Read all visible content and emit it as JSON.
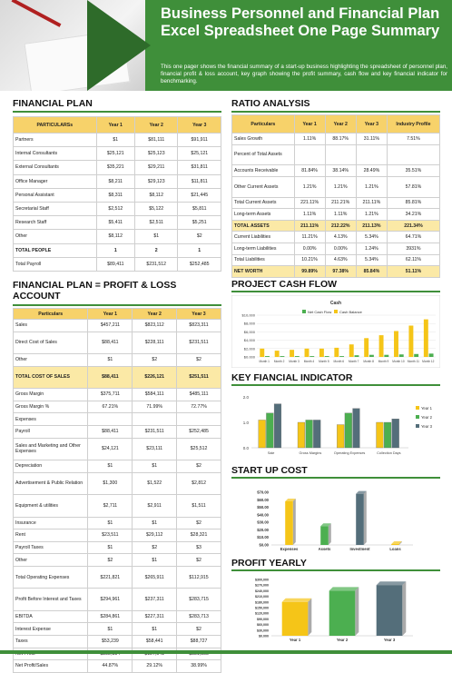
{
  "header": {
    "title": "Business Personnel and Financial Plan Excel Spreadsheet One Page Summary",
    "description": "This one pager shows the financial summary of a start-up business highlighting the spreadsheet of personnel plan, financial profit & loss account, key graph showing the profit summary, cash flow and key financial indicator for benchmarking."
  },
  "financial_plan": {
    "title": "FINANCIAL PLAN",
    "headers": [
      "PARTICULARSs",
      "Year 1",
      "Year 2",
      "Year 3"
    ],
    "rows": [
      [
        "Partners",
        "$1",
        "$81,111",
        "$91,911"
      ],
      [
        "Internal Consultants",
        "$25,121",
        "$25,123",
        "$25,121"
      ],
      [
        "External Consultants",
        "$35,221",
        "$29,211",
        "$31,811"
      ],
      [
        "Office Manager",
        "$8,211",
        "$29,123",
        "$11,811"
      ],
      [
        "Personal Assistant",
        "$8,311",
        "$8,112",
        "$21,445"
      ],
      [
        "Secretarial Staff",
        "$2,512",
        "$5,122",
        "$5,811"
      ],
      [
        "Research Staff",
        "$5,411",
        "$2,511",
        "$5,251"
      ],
      [
        "Other",
        "$8,112",
        "$1",
        "$2"
      ],
      [
        "TOTAL PEOPLE",
        "1",
        "2",
        "1"
      ],
      [
        "Total Payroll",
        "$89,411",
        "$231,512",
        "$252,485"
      ]
    ]
  },
  "ratio_analysis": {
    "title": "RATIO ANALYSIS",
    "headers": [
      "Particulars",
      "Year 1",
      "Year 2",
      "Year 3",
      "Industry Profile"
    ],
    "rows": [
      [
        "Sales Growth",
        "1.11%",
        "88.17%",
        "31.11%",
        "7.51%"
      ],
      [
        "Percent of Total Assets",
        "",
        "",
        "",
        ""
      ],
      [
        "Accounts Receivable",
        "81.84%",
        "38.14%",
        "28.49%",
        "35.51%"
      ],
      [
        "Other Current Assets",
        "1.21%",
        "1.21%",
        "1.21%",
        "57.81%"
      ],
      [
        "Total Current Assets",
        "221.11%",
        "211.21%",
        "211.11%",
        "85.81%"
      ],
      [
        "Long-term Assets",
        "1.11%",
        "1.11%",
        "1.21%",
        "34.21%"
      ],
      [
        "TOTAL ASSETS",
        "211.11%",
        "212.22%",
        "211.13%",
        "221.34%"
      ],
      [
        "Current Liabilities",
        "11.21%",
        "4.13%",
        "5.34%",
        "64.71%"
      ],
      [
        "Long-term Liabilities",
        "0.00%",
        "0.00%",
        "1.24%",
        "3931%"
      ],
      [
        "Total Liabilities",
        "10.21%",
        "4.63%",
        "5.34%",
        "62.11%"
      ],
      [
        "NET WORTH",
        "99.89%",
        "97.38%",
        "85.84%",
        "51.11%"
      ]
    ]
  },
  "pl_account": {
    "title": "FINANCIAL PLAN = PROFIT & LOSS ACCOUNT",
    "headers": [
      "Particulars",
      "Year 1",
      "Year 2",
      "Year 3"
    ],
    "rows": [
      [
        "Sales",
        "$457,211",
        "$823,112",
        "$823,311"
      ],
      [
        "Direct Cost of Sales",
        "$88,411",
        "$228,111",
        "$231,511"
      ],
      [
        "Other",
        "$1",
        "$2",
        "$2"
      ],
      [
        "TOTAL COST OF SALES",
        "$88,411",
        "$226,121",
        "$251,511"
      ],
      [
        "Gross Margin",
        "$375,711",
        "$584,111",
        "$485,111"
      ],
      [
        "Gross Margin %",
        "67.21%",
        "71.99%",
        "72.77%"
      ],
      [
        "Expenses",
        "",
        "",
        ""
      ],
      [
        "Payroll",
        "$88,411",
        "$231,511",
        "$252,485"
      ],
      [
        "Sales and Marketing and Other Expenses",
        "$24,121",
        "$23,111",
        "$25,512"
      ],
      [
        "Depreciation",
        "$1",
        "$1",
        "$2"
      ],
      [
        "Advertisement & Public Relation",
        "$1,300",
        "$1,522",
        "$2,812"
      ],
      [
        "Equipment & utilities",
        "$2,711",
        "$2,911",
        "$1,511"
      ],
      [
        "Insurance",
        "$1",
        "$1",
        "$2"
      ],
      [
        "Rent",
        "$23,511",
        "$29,112",
        "$28,321"
      ],
      [
        "Payroll Taxes",
        "$1",
        "$2",
        "$3"
      ],
      [
        "Other",
        "$2",
        "$1",
        "$2"
      ],
      [
        "Total Operating Expenses",
        "$221,821",
        "$265,911",
        "$112,915"
      ],
      [
        "Profit Before Interest and Taxes",
        "$294,961",
        "$237,311",
        "$283,715"
      ],
      [
        "EBITDA",
        "$284,861",
        "$227,311",
        "$283,713"
      ],
      [
        "Interest Expense",
        "$1",
        "$1",
        "$2"
      ],
      [
        "Taxes",
        "$53,239",
        "$58,441",
        "$88,727"
      ],
      [
        "Net Profit",
        "$222,834",
        "$127,541",
        "$381,855"
      ],
      [
        "Net Profit/Sales",
        "44.87%",
        "29.12%",
        "38.99%"
      ]
    ]
  },
  "project_cash_flow": {
    "title": "PROJECT CASH FLOW",
    "chart_data": {
      "type": "bar",
      "title": "Cash",
      "categories": [
        "Month 1",
        "Month 2",
        "Month 3",
        "Month 4",
        "Month 5",
        "Month 6",
        "Month 7",
        "Month 8",
        "Month 9",
        "Month 10",
        "Month 11",
        "Month 12"
      ],
      "series": [
        {
          "name": "Net Cash Flow",
          "values": [
            200,
            200,
            200,
            200,
            200,
            200,
            400,
            500,
            500,
            600,
            700,
            800
          ]
        },
        {
          "name": "Cash Balance",
          "values": [
            2000,
            1500,
            1700,
            2000,
            2000,
            2200,
            3000,
            4500,
            5200,
            6200,
            7500,
            9000
          ]
        }
      ],
      "y_ticks": [
        "$10,000",
        "$8,000",
        "$6,000",
        "$4,000",
        "$2,000",
        "$0.000"
      ],
      "ylim": [
        0,
        10000
      ],
      "colors": [
        "#4caf50",
        "#f5c518"
      ],
      "legend": "top"
    }
  },
  "key_indicator": {
    "title": "KEY FIANCIAL INDICATOR",
    "chart_data": {
      "type": "bar",
      "categories": [
        "Sale",
        "Gross Margins",
        "Operating Expenses",
        "Collection Days"
      ],
      "series": [
        {
          "name": "Year 1",
          "values": [
            1.2,
            1.1,
            1.0,
            1.1
          ]
        },
        {
          "name": "Year 2",
          "values": [
            1.5,
            1.2,
            1.5,
            1.1
          ]
        },
        {
          "name": "Year 3",
          "values": [
            1.9,
            1.2,
            1.7,
            1.25
          ]
        }
      ],
      "y_ticks": [
        "2.0",
        "1.0",
        "0.0"
      ],
      "ylim": [
        0,
        2.2
      ],
      "colors": [
        "#f5c518",
        "#4caf50",
        "#546e7a"
      ],
      "legend": "right"
    }
  },
  "start_up_cost": {
    "title": "START UP COST",
    "chart_data": {
      "type": "bar",
      "categories": [
        "Expenses",
        "Assets",
        "Investment",
        "Loans"
      ],
      "values": [
        58,
        25,
        68,
        1
      ],
      "y_ticks": [
        "$70.00",
        "$60.00",
        "$50.00",
        "$40.00",
        "$30.00",
        "$20.00",
        "$10.00",
        "$0.00"
      ],
      "ylim": [
        0,
        70
      ],
      "colors": [
        "#f5c518",
        "#4caf50",
        "#546e7a",
        "#f5c518"
      ]
    }
  },
  "profit_yearly": {
    "title": "PROFIT YEARLY",
    "chart_data": {
      "type": "bar",
      "categories": [
        "Year 1",
        "Year 2",
        "Year 3"
      ],
      "values": [
        180000,
        240000,
        270000
      ],
      "y_ticks": [
        "$300,000",
        "$270,000",
        "$240,000",
        "$210,000",
        "$180,000",
        "$150,000",
        "$120,000",
        "$90,000",
        "$60,000",
        "$30,000",
        "$0.000"
      ],
      "ylim": [
        0,
        300000
      ],
      "colors": [
        "#f5c518",
        "#4caf50",
        "#546e7a"
      ]
    }
  }
}
